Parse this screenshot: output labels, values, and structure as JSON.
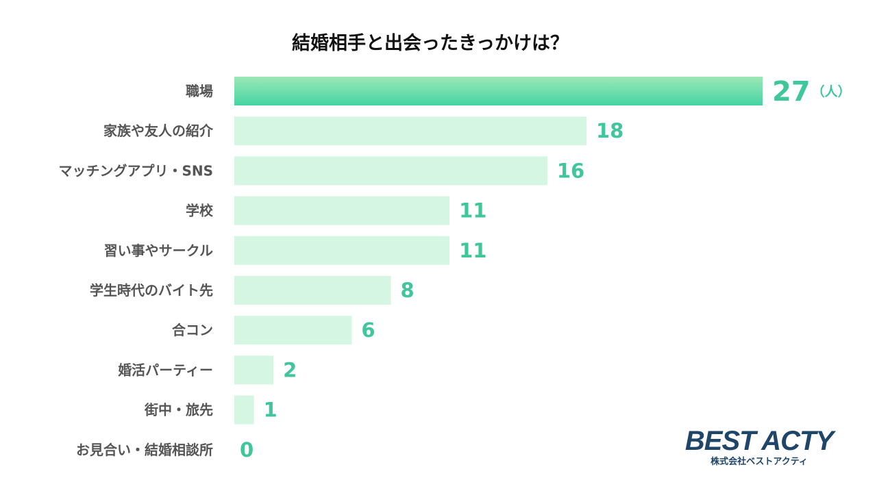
{
  "chart_data": {
    "type": "bar",
    "orientation": "horizontal",
    "title": "結婚相手と出会ったきっかけは？",
    "unit": "（人）",
    "categories": [
      "職場",
      "家族や友人の紹介",
      "マッチングアプリ・SNS",
      "学校",
      "習い事やサークル",
      "学生時代のバイト先",
      "合コン",
      "婚活パーティー",
      "街中・旅先",
      "お見合い・結婚相談所"
    ],
    "values": [
      27,
      18,
      16,
      11,
      11,
      8,
      6,
      2,
      1,
      0
    ],
    "xlim": [
      0,
      27
    ],
    "grid": false,
    "legend": "none",
    "colors": {
      "highlight_bar_top": "#9be8b6",
      "highlight_bar_bottom": "#46d4a3",
      "bar": "#d5f6e3",
      "value_text": "#3fc79a",
      "label_text": "#555555"
    }
  },
  "logo": {
    "main": "BEST ACTY",
    "sub": "株式会社ベストアクティ",
    "color": "#1f4569"
  }
}
